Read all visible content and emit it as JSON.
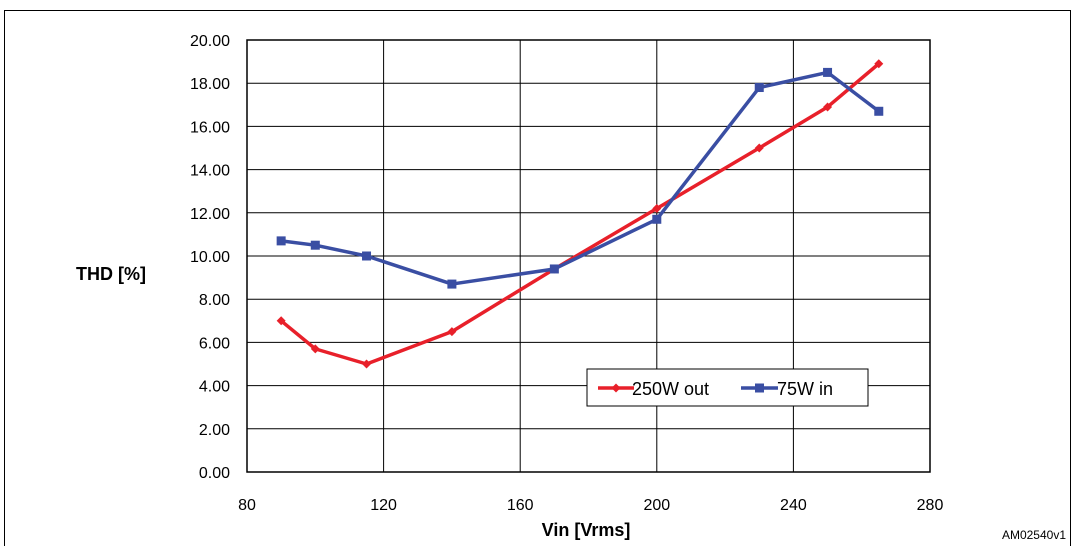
{
  "figure": {
    "id_label": "AM02540v1"
  },
  "chart_data": {
    "type": "line",
    "xlabel": "Vin [Vrms]",
    "ylabel": "THD [%]",
    "xlim": [
      80,
      280
    ],
    "ylim": [
      0,
      20
    ],
    "x_ticks": [
      "80",
      "120",
      "160",
      "200",
      "240",
      "280"
    ],
    "y_ticks": [
      "0.00",
      "2.00",
      "4.00",
      "6.00",
      "8.00",
      "10.00",
      "12.00",
      "14.00",
      "16.00",
      "18.00",
      "20.00"
    ],
    "grid": true,
    "legend_position": "lower-right",
    "series": [
      {
        "name": "250W out",
        "color": "#e8202a",
        "marker": "diamond",
        "x": [
          90,
          100,
          115,
          140,
          170,
          200,
          230,
          250,
          265
        ],
        "y": [
          7.0,
          5.7,
          5.0,
          6.5,
          9.4,
          12.2,
          15.0,
          16.9,
          18.9
        ]
      },
      {
        "name": "75W in",
        "color": "#3a4ea3",
        "marker": "square",
        "x": [
          90,
          100,
          115,
          140,
          170,
          200,
          230,
          250,
          265
        ],
        "y": [
          10.7,
          10.5,
          10.0,
          8.7,
          9.4,
          11.7,
          17.8,
          18.5,
          16.7
        ]
      }
    ]
  }
}
